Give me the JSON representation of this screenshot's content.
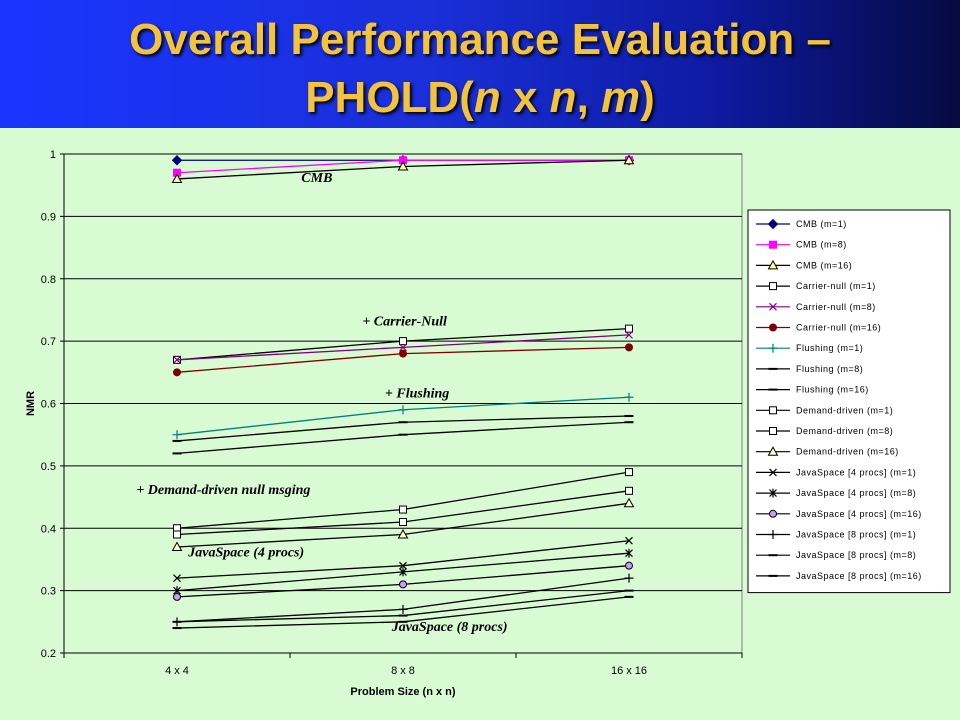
{
  "title": {
    "line1": "Overall Performance Evaluation –",
    "line2_prefix": "PHOLD(",
    "line2_n1": "n",
    "line2_x": " x ",
    "line2_n2": "n",
    "line2_comma": ", ",
    "line2_m": "m",
    "line2_suffix": ")"
  },
  "chart_data": {
    "type": "line",
    "title": "",
    "xlabel": "Problem Size (n x n)",
    "ylabel": "NMR",
    "categories": [
      "4 x 4",
      "8 x 8",
      "16 x 16"
    ],
    "ylim": [
      0.2,
      1
    ],
    "yticks": [
      "0.2",
      "0.3",
      "0.4",
      "0.5",
      "0.6",
      "0.7",
      "0.8",
      "0.9",
      "1"
    ],
    "grid": "horizontal",
    "legend_position": "right",
    "series": [
      {
        "name": "CMB (m=1)",
        "values": [
          0.99,
          0.99,
          0.99
        ],
        "color": "#000080",
        "marker": "diamond",
        "fill": "#000080"
      },
      {
        "name": "CMB (m=8)",
        "values": [
          0.97,
          0.99,
          0.99
        ],
        "color": "#ff00ff",
        "marker": "square",
        "fill": "#ff00ff"
      },
      {
        "name": "CMB (m=16)",
        "values": [
          0.96,
          0.98,
          0.99
        ],
        "color": "#000000",
        "marker": "triangle",
        "fill": "#ffff99"
      },
      {
        "name": "Carrier-null (m=1)",
        "values": [
          0.67,
          0.7,
          0.72
        ],
        "color": "#000000",
        "marker": "square",
        "fill": "#ffffff"
      },
      {
        "name": "Carrier-null (m=8)",
        "values": [
          0.67,
          0.69,
          0.71
        ],
        "color": "#800080",
        "marker": "x",
        "fill": "none"
      },
      {
        "name": "Carrier-null (m=16)",
        "values": [
          0.65,
          0.68,
          0.69
        ],
        "color": "#800000",
        "marker": "circle",
        "fill": "#800000"
      },
      {
        "name": "Flushing (m=1)",
        "values": [
          0.55,
          0.59,
          0.61
        ],
        "color": "#008080",
        "marker": "plus",
        "fill": "none"
      },
      {
        "name": "Flushing (m=8)",
        "values": [
          0.54,
          0.57,
          0.58
        ],
        "color": "#000000",
        "marker": "dash",
        "fill": "none"
      },
      {
        "name": "Flushing (m=16)",
        "values": [
          0.52,
          0.55,
          0.57
        ],
        "color": "#000000",
        "marker": "dash",
        "fill": "none"
      },
      {
        "name": "Demand-driven (m=1)",
        "values": [
          0.4,
          0.43,
          0.49
        ],
        "color": "#000000",
        "marker": "square",
        "fill": "#ffffff"
      },
      {
        "name": "Demand-driven (m=8)",
        "values": [
          0.39,
          0.41,
          0.46
        ],
        "color": "#000000",
        "marker": "square",
        "fill": "#ffffff"
      },
      {
        "name": "Demand-driven (m=16)",
        "values": [
          0.37,
          0.39,
          0.44
        ],
        "color": "#000000",
        "marker": "triangle",
        "fill": "#ffffcc"
      },
      {
        "name": "JavaSpace [4 procs] (m=1)",
        "values": [
          0.32,
          0.34,
          0.38
        ],
        "color": "#000000",
        "marker": "x",
        "fill": "none"
      },
      {
        "name": "JavaSpace [4 procs] (m=8)",
        "values": [
          0.3,
          0.33,
          0.36
        ],
        "color": "#000000",
        "marker": "star",
        "fill": "none"
      },
      {
        "name": "JavaSpace [4 procs] (m=16)",
        "values": [
          0.29,
          0.31,
          0.34
        ],
        "color": "#000000",
        "marker": "circle",
        "fill": "#cc99ff"
      },
      {
        "name": "JavaSpace [8 procs] (m=1)",
        "values": [
          0.25,
          0.27,
          0.32
        ],
        "color": "#000000",
        "marker": "plus",
        "fill": "none"
      },
      {
        "name": "JavaSpace [8 procs] (m=8)",
        "values": [
          0.25,
          0.26,
          0.3
        ],
        "color": "#000000",
        "marker": "dash",
        "fill": "none"
      },
      {
        "name": "JavaSpace [8 procs] (m=16)",
        "values": [
          0.24,
          0.25,
          0.29
        ],
        "color": "#000000",
        "marker": "dash",
        "fill": "none"
      }
    ],
    "annotations": [
      {
        "text": "CMB",
        "x_cat": 1.05,
        "y": 0.955
      },
      {
        "text": "+ Carrier-Null",
        "x_cat": 1.32,
        "y": 0.725
      },
      {
        "text": "+ Flushing",
        "x_cat": 1.42,
        "y": 0.61
      },
      {
        "text": "+ Demand-driven null msging",
        "x_cat": 0.32,
        "y": 0.455
      },
      {
        "text": "JavaSpace (4 procs)",
        "x_cat": 0.55,
        "y": 0.355
      },
      {
        "text": "JavaSpace (8 procs)",
        "x_cat": 1.45,
        "y": 0.235
      }
    ]
  }
}
